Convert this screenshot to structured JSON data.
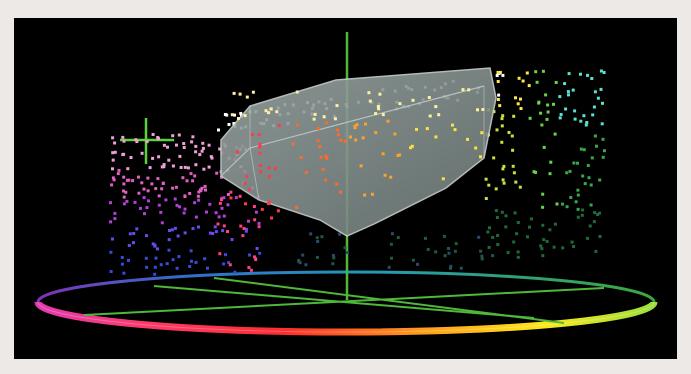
{
  "viewer": {
    "background_color": "#000000",
    "page_background_color": "#ece9e6",
    "axis_color": "#5bbf3a",
    "gamut_solid_color": "#8f9a98",
    "gamut_edge_color": "#c7cfcd",
    "hue_ring_stops": [
      "#ff2d2d",
      "#ff9a1a",
      "#ffe81a",
      "#4ad24a",
      "#2fc0e0",
      "#3a5cff",
      "#c040e0",
      "#ff40a0",
      "#ff2d2d"
    ]
  }
}
